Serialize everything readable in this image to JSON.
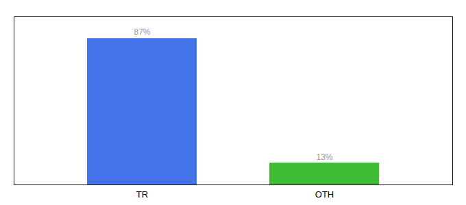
{
  "chart_data": {
    "type": "bar",
    "categories": [
      "TR",
      "OTH"
    ],
    "values": [
      87,
      13
    ],
    "value_labels": [
      "87%",
      "13%"
    ],
    "colors": [
      "#4472e8",
      "#3dbc34"
    ],
    "ylim": [
      0,
      100
    ],
    "data_labels": true,
    "tick_labels": "x"
  }
}
